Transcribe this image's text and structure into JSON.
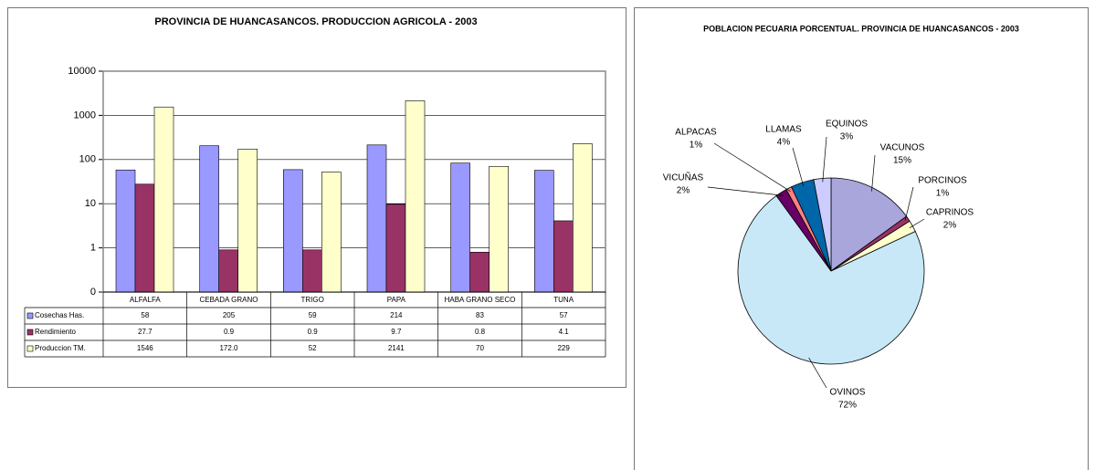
{
  "chart_data": [
    {
      "type": "bar",
      "title": "PROVINCIA DE HUANCASANCOS. PRODUCCION AGRICOLA - 2003",
      "categories": [
        "ALFALFA",
        "CEBADA GRANO",
        "TRIGO",
        "PAPA",
        "HABA GRANO SECO",
        "TUNA"
      ],
      "series": [
        {
          "name": "Cosechas Has.",
          "color": "#9999ff",
          "values": [
            58,
            205,
            59,
            214,
            83,
            57
          ]
        },
        {
          "name": "Rendimiento",
          "color": "#993366",
          "values": [
            27.7,
            0.9,
            0.9,
            9.7,
            0.8,
            4.1
          ]
        },
        {
          "name": "Produccion TM.",
          "color": "#ffffcc",
          "values": [
            1546,
            172.0,
            52,
            2141,
            70,
            229
          ],
          "value_labels": [
            "1546",
            "172.0",
            "52",
            "2141",
            "70",
            "229"
          ]
        }
      ],
      "ylim": [
        0.1,
        10000
      ],
      "log_scale": true,
      "grid": true,
      "yticks": [
        {
          "value": 0.1,
          "label": "0"
        },
        1,
        10,
        100,
        1000,
        10000
      ]
    },
    {
      "type": "pie",
      "title": "POBLACION PECUARIA PORCENTUAL. PROVINCIA DE HUANCASANCOS - 2003",
      "categories": [
        "VACUNOS",
        "PORCINOS",
        "CAPRINOS",
        "OVINOS",
        "VICUÑAS",
        "ALPACAS",
        "LLAMAS",
        "EQUINOS"
      ],
      "values": [
        15,
        1,
        2,
        72,
        2,
        1,
        4,
        3
      ],
      "value_labels": [
        "15%",
        "1%",
        "2%",
        "72%",
        "2%",
        "1%",
        "4%",
        "3%"
      ],
      "colors": [
        "#a9a6db",
        "#993366",
        "#ffffcc",
        "#c8e8f8",
        "#660066",
        "#ff8080",
        "#0066aa",
        "#ccccff"
      ]
    }
  ]
}
